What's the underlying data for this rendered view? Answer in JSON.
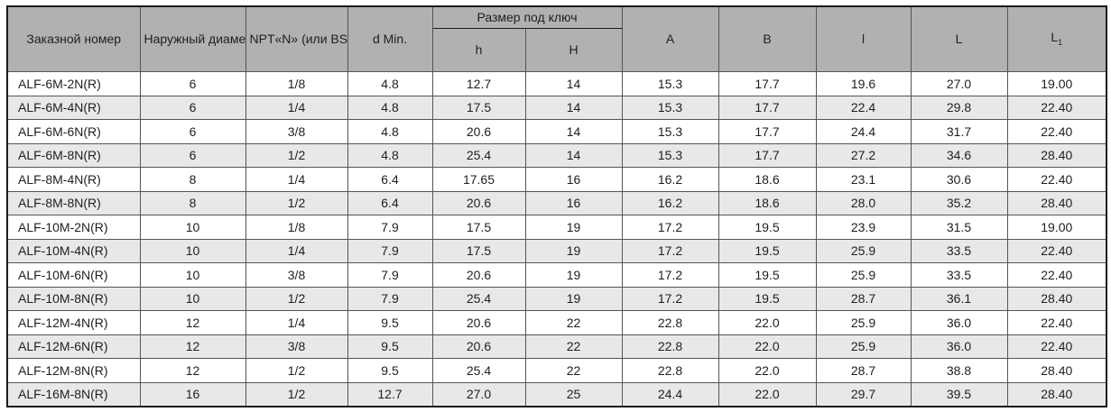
{
  "table": {
    "headers": {
      "order": "Заказной номер",
      "diameter": "Наружный\nдиаметр\nтрубы D",
      "thread": "NPT«N»\n(или\nBSPT«R»)",
      "d_min": "d Min.",
      "wrench_group": "Размер под ключ",
      "h": "h",
      "H": "H",
      "A": "A",
      "B": "B",
      "l": "l",
      "L": "L",
      "L1_main": "L",
      "L1_sub": "1"
    },
    "column_keys": [
      "order",
      "diameter",
      "thread",
      "d_min",
      "h",
      "H",
      "A",
      "B",
      "l",
      "L",
      "L1"
    ],
    "rows": [
      [
        "ALF-6M-2N(R)",
        "6",
        "1/8",
        "4.8",
        "12.7",
        "14",
        "15.3",
        "17.7",
        "19.6",
        "27.0",
        "19.00"
      ],
      [
        "ALF-6M-4N(R)",
        "6",
        "1/4",
        "4.8",
        "17.5",
        "14",
        "15.3",
        "17.7",
        "22.4",
        "29.8",
        "22.40"
      ],
      [
        "ALF-6M-6N(R)",
        "6",
        "3/8",
        "4.8",
        "20.6",
        "14",
        "15.3",
        "17.7",
        "24.4",
        "31.7",
        "22.40"
      ],
      [
        "ALF-6M-8N(R)",
        "6",
        "1/2",
        "4.8",
        "25.4",
        "14",
        "15.3",
        "17.7",
        "27.2",
        "34.6",
        "28.40"
      ],
      [
        "ALF-8M-4N(R)",
        "8",
        "1/4",
        "6.4",
        "17.65",
        "16",
        "16.2",
        "18.6",
        "23.1",
        "30.6",
        "22.40"
      ],
      [
        "ALF-8M-8N(R)",
        "8",
        "1/2",
        "6.4",
        "20.6",
        "16",
        "16.2",
        "18.6",
        "28.0",
        "35.2",
        "28.40"
      ],
      [
        "ALF-10M-2N(R)",
        "10",
        "1/8",
        "7.9",
        "17.5",
        "19",
        "17.2",
        "19.5",
        "23.9",
        "31.5",
        "19.00"
      ],
      [
        "ALF-10M-4N(R)",
        "10",
        "1/4",
        "7.9",
        "17.5",
        "19",
        "17.2",
        "19.5",
        "25.9",
        "33.5",
        "22.40"
      ],
      [
        "ALF-10M-6N(R)",
        "10",
        "3/8",
        "7.9",
        "20.6",
        "19",
        "17.2",
        "19.5",
        "25.9",
        "33.5",
        "22.40"
      ],
      [
        "ALF-10M-8N(R)",
        "10",
        "1/2",
        "7.9",
        "25.4",
        "19",
        "17.2",
        "19.5",
        "28.7",
        "36.1",
        "28.40"
      ],
      [
        "ALF-12M-4N(R)",
        "12",
        "1/4",
        "9.5",
        "20.6",
        "22",
        "22.8",
        "22.0",
        "25.9",
        "36.0",
        "22.40"
      ],
      [
        "ALF-12M-6N(R)",
        "12",
        "3/8",
        "9.5",
        "20.6",
        "22",
        "22.8",
        "22.0",
        "25.9",
        "36.0",
        "22.40"
      ],
      [
        "ALF-12M-8N(R)",
        "12",
        "1/2",
        "9.5",
        "25.4",
        "22",
        "22.8",
        "22.0",
        "28.7",
        "38.8",
        "28.40"
      ],
      [
        "ALF-16M-8N(R)",
        "16",
        "1/2",
        "12.7",
        "27.0",
        "25",
        "24.4",
        "22.0",
        "29.7",
        "39.5",
        "28.40"
      ]
    ]
  },
  "colors": {
    "header_bg": "#b1b1b1",
    "alt_row_bg": "#e8e8e8",
    "row_bg": "#ffffff",
    "inner_border": "#555555",
    "outer_border": "#1a1a1a",
    "text": "#1f1f1f"
  }
}
